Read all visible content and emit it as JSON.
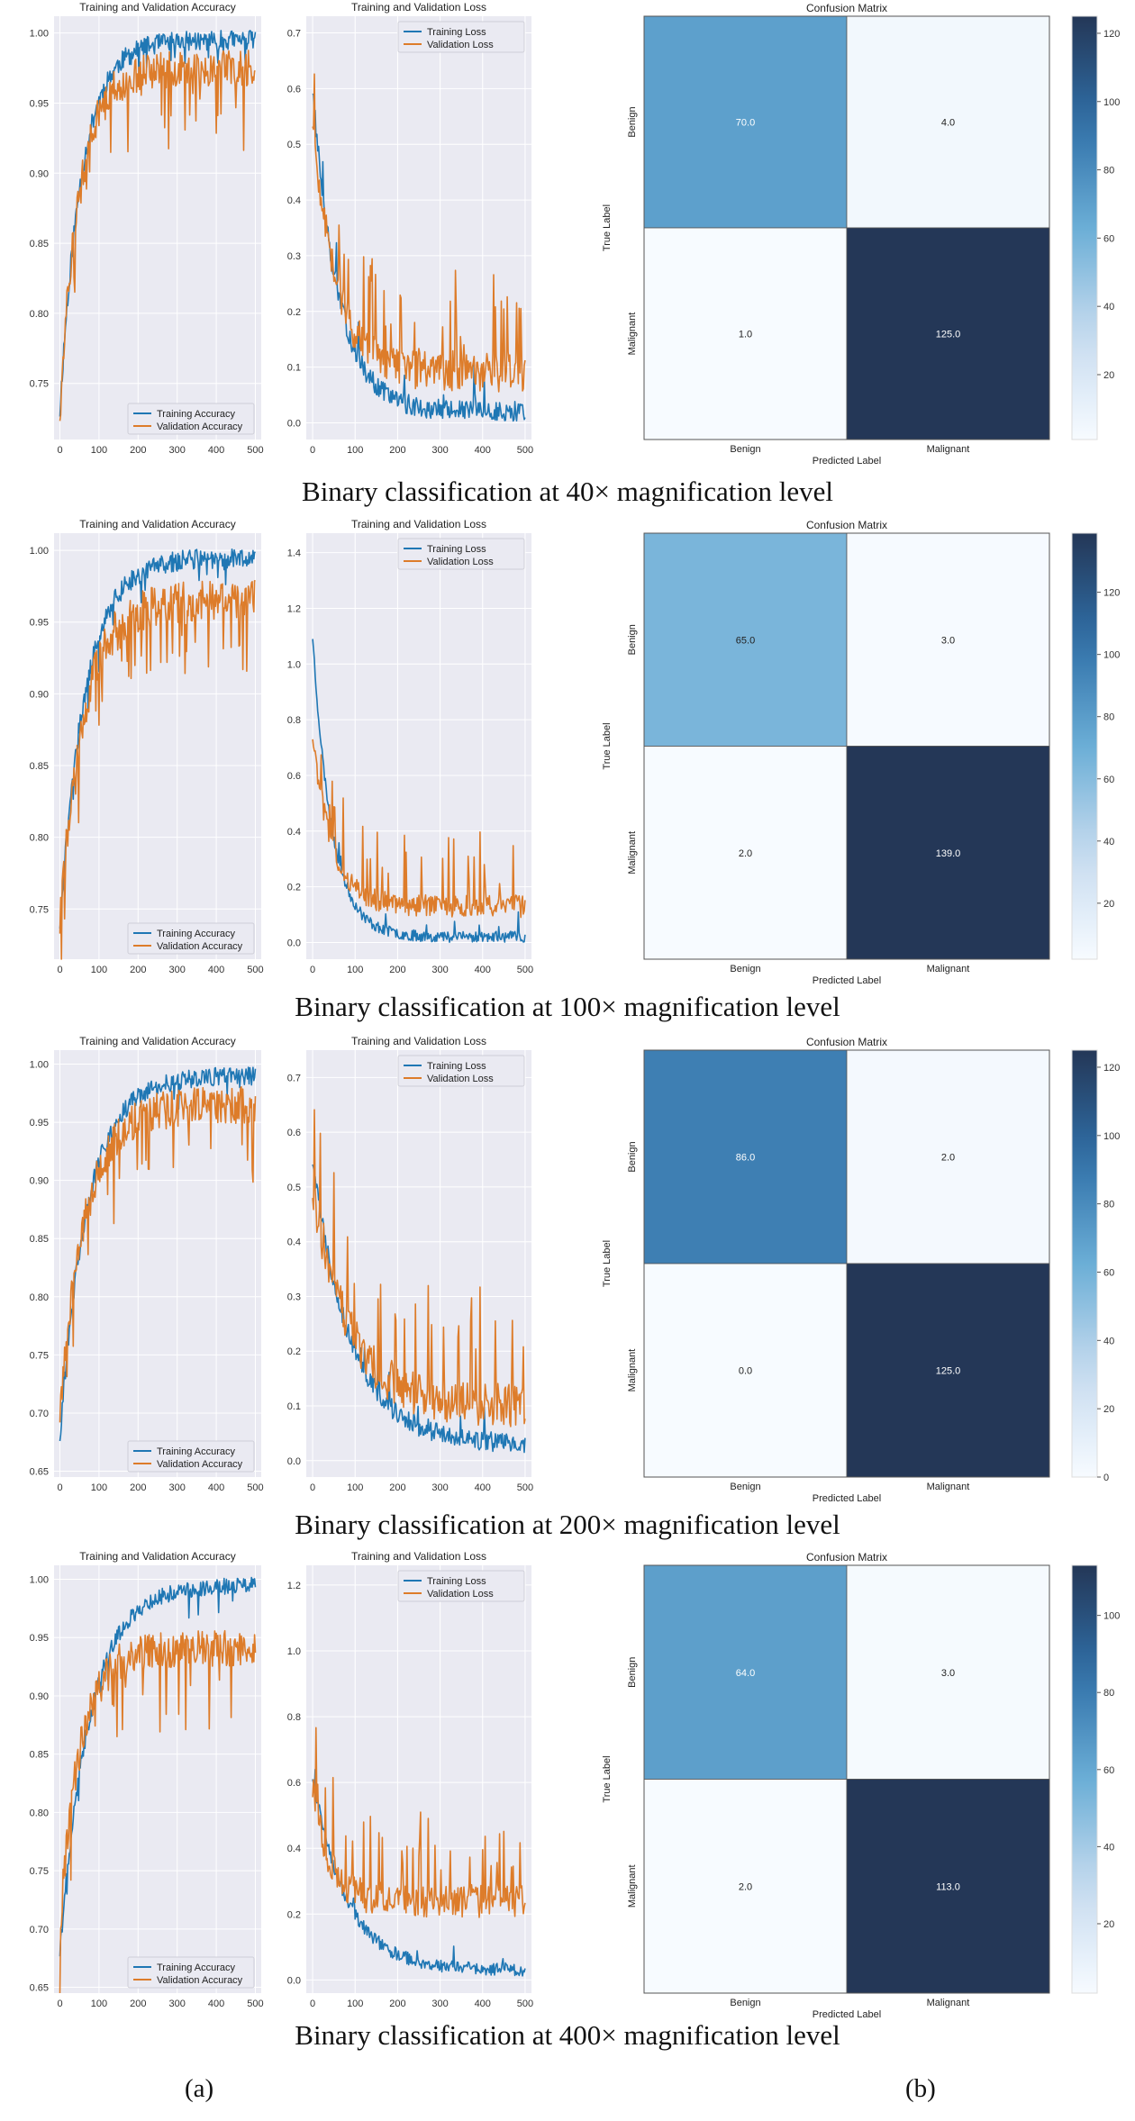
{
  "colors": {
    "training": "#1f77b4",
    "validation": "#dd7c2a",
    "panel_bg": "#eaeaf2",
    "grid": "#ffffff",
    "cm_low": "#f7fbff",
    "cm_high": "#243757"
  },
  "panel_labels": {
    "a": "(a)",
    "b": "(b)"
  },
  "chart_data": [
    {
      "type": "line",
      "group": 0,
      "title": "Training and Validation Accuracy",
      "xlim": [
        -15,
        515
      ],
      "ylim": [
        0.71,
        1.012
      ],
      "xticks": [
        0,
        100,
        200,
        300,
        400,
        500
      ],
      "yticks": [
        0.75,
        0.8,
        0.85,
        0.9,
        0.95,
        1.0
      ],
      "legend": "bottom-right",
      "series": [
        {
          "name": "Training Accuracy",
          "key": "training",
          "start": 0.73,
          "end": 0.995,
          "tau": 55,
          "noise": 0.007,
          "spike_prob": 0.04,
          "spike_size": 0.012,
          "seed": 11
        },
        {
          "name": "Validation Accuracy",
          "key": "validation",
          "start": 0.73,
          "end": 0.975,
          "tau": 50,
          "noise": 0.013,
          "spike_prob": 0.1,
          "spike_size": 0.035,
          "seed": 12
        }
      ]
    },
    {
      "type": "line",
      "group": 0,
      "title": "Training and Validation Loss",
      "xlim": [
        -15,
        515
      ],
      "ylim": [
        -0.03,
        0.73
      ],
      "xticks": [
        0,
        100,
        200,
        300,
        400,
        500
      ],
      "yticks": [
        0.0,
        0.1,
        0.2,
        0.3,
        0.4,
        0.5,
        0.6,
        0.7
      ],
      "legend": "top-right",
      "series": [
        {
          "name": "Training Loss",
          "key": "training",
          "start": 0.6,
          "end": 0.02,
          "tau": 60,
          "noise": 0.018,
          "spike_prob": 0.04,
          "spike_size": 0.05,
          "seed": 13
        },
        {
          "name": "Validation Loss",
          "key": "validation",
          "start": 0.55,
          "end": 0.09,
          "tau": 55,
          "noise": 0.035,
          "spike_prob": 0.1,
          "spike_size": 0.12,
          "seed": 14
        }
      ]
    },
    {
      "type": "heatmap",
      "group": 0,
      "title": "Confusion Matrix",
      "xlabel": "Predicted Label",
      "ylabel": "True Label",
      "row_labels": [
        "Benign",
        "Malignant"
      ],
      "col_labels": [
        "Benign",
        "Malignant"
      ],
      "values": [
        [
          70.0,
          4.0
        ],
        [
          1.0,
          125.0
        ]
      ],
      "value_labels": [
        [
          "70.0",
          "4.0"
        ],
        [
          "1.0",
          "125.0"
        ]
      ],
      "colorbar_ticks": [
        20,
        40,
        60,
        80,
        100,
        120
      ]
    },
    {
      "type": "line",
      "group": 1,
      "title": "Training and Validation Accuracy",
      "xlim": [
        -15,
        515
      ],
      "ylim": [
        0.715,
        1.012
      ],
      "xticks": [
        0,
        100,
        200,
        300,
        400,
        500
      ],
      "yticks": [
        0.75,
        0.8,
        0.85,
        0.9,
        0.95,
        1.0
      ],
      "legend": "bottom-right",
      "series": [
        {
          "name": "Training Accuracy",
          "key": "training",
          "start": 0.74,
          "end": 0.995,
          "tau": 65,
          "noise": 0.007,
          "spike_prob": 0.04,
          "spike_size": 0.015,
          "seed": 21
        },
        {
          "name": "Validation Accuracy",
          "key": "validation",
          "start": 0.74,
          "end": 0.965,
          "tau": 60,
          "noise": 0.014,
          "spike_prob": 0.1,
          "spike_size": 0.04,
          "seed": 22
        }
      ]
    },
    {
      "type": "line",
      "group": 1,
      "title": "Training and Validation Loss",
      "xlim": [
        -15,
        515
      ],
      "ylim": [
        -0.06,
        1.47
      ],
      "xticks": [
        0,
        100,
        200,
        300,
        400,
        500
      ],
      "yticks": [
        0.0,
        0.2,
        0.4,
        0.6,
        0.8,
        1.0,
        1.2,
        1.4
      ],
      "legend": "top-right",
      "series": [
        {
          "name": "Training Loss",
          "key": "training",
          "start": 1.1,
          "end": 0.02,
          "tau": 45,
          "noise": 0.02,
          "spike_prob": 0.03,
          "spike_size": 0.06,
          "seed": 23
        },
        {
          "name": "Validation Loss",
          "key": "validation",
          "start": 0.75,
          "end": 0.13,
          "tau": 45,
          "noise": 0.04,
          "spike_prob": 0.09,
          "spike_size": 0.2,
          "seed": 24
        }
      ]
    },
    {
      "type": "heatmap",
      "group": 1,
      "title": "Confusion Matrix",
      "xlabel": "Predicted Label",
      "ylabel": "True Label",
      "row_labels": [
        "Benign",
        "Malignant"
      ],
      "col_labels": [
        "Benign",
        "Malignant"
      ],
      "values": [
        [
          65.0,
          3.0
        ],
        [
          2.0,
          139.0
        ]
      ],
      "value_labels": [
        [
          "65.0",
          "3.0"
        ],
        [
          "2.0",
          "139.0"
        ]
      ],
      "colorbar_ticks": [
        20,
        40,
        60,
        80,
        100,
        120
      ]
    },
    {
      "type": "line",
      "group": 2,
      "title": "Training and Validation Accuracy",
      "xlim": [
        -15,
        515
      ],
      "ylim": [
        0.645,
        1.012
      ],
      "xticks": [
        0,
        100,
        200,
        300,
        400,
        500
      ],
      "yticks": [
        0.65,
        0.7,
        0.75,
        0.8,
        0.85,
        0.9,
        0.95,
        1.0
      ],
      "legend": "bottom-right",
      "series": [
        {
          "name": "Training Accuracy",
          "key": "training",
          "start": 0.68,
          "end": 0.99,
          "tau": 70,
          "noise": 0.008,
          "spike_prob": 0.04,
          "spike_size": 0.015,
          "seed": 31
        },
        {
          "name": "Validation Accuracy",
          "key": "validation",
          "start": 0.7,
          "end": 0.965,
          "tau": 65,
          "noise": 0.016,
          "spike_prob": 0.1,
          "spike_size": 0.045,
          "seed": 32
        }
      ]
    },
    {
      "type": "line",
      "group": 2,
      "title": "Training and Validation Loss",
      "xlim": [
        -15,
        515
      ],
      "ylim": [
        -0.03,
        0.75
      ],
      "xticks": [
        0,
        100,
        200,
        300,
        400,
        500
      ],
      "yticks": [
        0.0,
        0.1,
        0.2,
        0.3,
        0.4,
        0.5,
        0.6,
        0.7
      ],
      "legend": "top-right",
      "series": [
        {
          "name": "Training Loss",
          "key": "training",
          "start": 0.55,
          "end": 0.03,
          "tau": 90,
          "noise": 0.018,
          "spike_prob": 0.04,
          "spike_size": 0.05,
          "seed": 33
        },
        {
          "name": "Validation Loss",
          "key": "validation",
          "start": 0.5,
          "end": 0.1,
          "tau": 85,
          "noise": 0.04,
          "spike_prob": 0.1,
          "spike_size": 0.14,
          "seed": 34
        }
      ]
    },
    {
      "type": "heatmap",
      "group": 2,
      "title": "Confusion Matrix",
      "xlabel": "Predicted Label",
      "ylabel": "True Label",
      "row_labels": [
        "Benign",
        "Malignant"
      ],
      "col_labels": [
        "Benign",
        "Malignant"
      ],
      "values": [
        [
          86.0,
          2.0
        ],
        [
          0.0,
          125.0
        ]
      ],
      "value_labels": [
        [
          "86.0",
          "2.0"
        ],
        [
          "0.0",
          "125.0"
        ]
      ],
      "colorbar_ticks": [
        0,
        20,
        40,
        60,
        80,
        100,
        120
      ]
    },
    {
      "type": "line",
      "group": 3,
      "title": "Training and Validation Accuracy",
      "xlim": [
        -15,
        515
      ],
      "ylim": [
        0.645,
        1.012
      ],
      "xticks": [
        0,
        100,
        200,
        300,
        400,
        500
      ],
      "yticks": [
        0.65,
        0.7,
        0.75,
        0.8,
        0.85,
        0.9,
        0.95,
        1.0
      ],
      "legend": "bottom-right",
      "series": [
        {
          "name": "Training Accuracy",
          "key": "training",
          "start": 0.68,
          "end": 0.995,
          "tau": 75,
          "noise": 0.007,
          "spike_prob": 0.04,
          "spike_size": 0.015,
          "seed": 41
        },
        {
          "name": "Validation Accuracy",
          "key": "validation",
          "start": 0.7,
          "end": 0.94,
          "tau": 50,
          "noise": 0.016,
          "spike_prob": 0.1,
          "spike_size": 0.05,
          "seed": 42
        }
      ]
    },
    {
      "type": "line",
      "group": 3,
      "title": "Training and Validation Loss",
      "xlim": [
        -15,
        515
      ],
      "ylim": [
        -0.04,
        1.26
      ],
      "xticks": [
        0,
        100,
        200,
        300,
        400,
        500
      ],
      "yticks": [
        0.0,
        0.2,
        0.4,
        0.6,
        0.8,
        1.0,
        1.2
      ],
      "legend": "top-right",
      "series": [
        {
          "name": "Training Loss",
          "key": "training",
          "start": 0.62,
          "end": 0.03,
          "tau": 80,
          "noise": 0.02,
          "spike_prob": 0.04,
          "spike_size": 0.06,
          "seed": 43
        },
        {
          "name": "Validation Loss",
          "key": "validation",
          "start": 0.58,
          "end": 0.24,
          "tau": 40,
          "noise": 0.05,
          "spike_prob": 0.12,
          "spike_size": 0.18,
          "seed": 44
        }
      ]
    },
    {
      "type": "heatmap",
      "group": 3,
      "title": "Confusion Matrix",
      "xlabel": "Predicted Label",
      "ylabel": "True Label",
      "row_labels": [
        "Benign",
        "Malignant"
      ],
      "col_labels": [
        "Benign",
        "Malignant"
      ],
      "values": [
        [
          64.0,
          3.0
        ],
        [
          2.0,
          113.0
        ]
      ],
      "value_labels": [
        [
          "64.0",
          "3.0"
        ],
        [
          "2.0",
          "113.0"
        ]
      ],
      "colorbar_ticks": [
        20,
        40,
        60,
        80,
        100
      ]
    }
  ],
  "captions": [
    "Binary classification  at  40× magnification level",
    "Binary classification  at  100× magnification level",
    "Binary classification  at  200× magnification level",
    "Binary classification  at  400× magnification level"
  ]
}
